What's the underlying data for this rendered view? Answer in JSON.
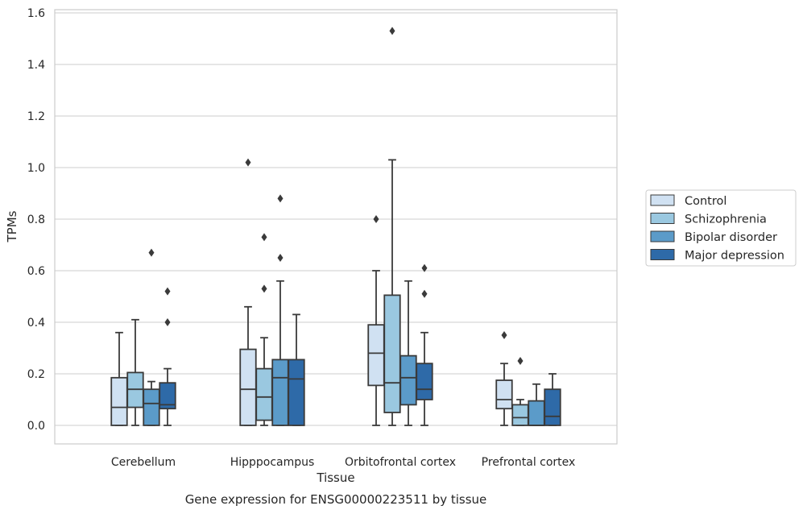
{
  "chart_data": {
    "type": "box",
    "title": "",
    "caption": "Gene expression for ENSG00000223511 by tissue",
    "xlabel": "Tissue",
    "ylabel": "TPMs",
    "ylim": [
      -0.07,
      1.61
    ],
    "yticks": [
      0.0,
      0.2,
      0.4,
      0.6,
      0.8,
      1.0,
      1.2,
      1.4,
      1.6
    ],
    "ytick_labels": [
      "0.0",
      "0.2",
      "0.4",
      "0.6",
      "0.8",
      "1.0",
      "1.2",
      "1.4",
      "1.6"
    ],
    "grid": true,
    "legend_position": "right",
    "categories": [
      "Cerebellum",
      "Hipppocampus",
      "Orbitofrontal cortex",
      "Prefrontal cortex"
    ],
    "series": [
      {
        "name": "Control",
        "color": "#d0e1f2",
        "boxes": [
          {
            "whisker_low": 0.0,
            "q1": 0.0,
            "median": 0.07,
            "q3": 0.185,
            "whisker_high": 0.36,
            "outliers": []
          },
          {
            "whisker_low": 0.0,
            "q1": 0.0,
            "median": 0.14,
            "q3": 0.295,
            "whisker_high": 0.46,
            "outliers": [
              1.02
            ]
          },
          {
            "whisker_low": 0.0,
            "q1": 0.155,
            "median": 0.28,
            "q3": 0.39,
            "whisker_high": 0.6,
            "outliers": [
              0.8
            ]
          },
          {
            "whisker_low": 0.0,
            "q1": 0.065,
            "median": 0.1,
            "q3": 0.175,
            "whisker_high": 0.24,
            "outliers": [
              0.35
            ]
          }
        ]
      },
      {
        "name": "Schizophrenia",
        "color": "#9ac8e0",
        "boxes": [
          {
            "whisker_low": 0.0,
            "q1": 0.07,
            "median": 0.14,
            "q3": 0.205,
            "whisker_high": 0.41,
            "outliers": []
          },
          {
            "whisker_low": 0.0,
            "q1": 0.02,
            "median": 0.11,
            "q3": 0.22,
            "whisker_high": 0.34,
            "outliers": [
              0.53,
              0.73
            ]
          },
          {
            "whisker_low": 0.0,
            "q1": 0.05,
            "median": 0.165,
            "q3": 0.505,
            "whisker_high": 1.03,
            "outliers": [
              1.53
            ]
          },
          {
            "whisker_low": 0.0,
            "q1": 0.0,
            "median": 0.03,
            "q3": 0.08,
            "whisker_high": 0.1,
            "outliers": [
              0.25
            ]
          }
        ]
      },
      {
        "name": "Bipolar disorder",
        "color": "#5b9bc9",
        "boxes": [
          {
            "whisker_low": 0.0,
            "q1": 0.0,
            "median": 0.085,
            "q3": 0.14,
            "whisker_high": 0.17,
            "outliers": [
              0.67
            ]
          },
          {
            "whisker_low": 0.0,
            "q1": 0.0,
            "median": 0.185,
            "q3": 0.255,
            "whisker_high": 0.56,
            "outliers": [
              0.65,
              0.88
            ]
          },
          {
            "whisker_low": 0.0,
            "q1": 0.08,
            "median": 0.185,
            "q3": 0.27,
            "whisker_high": 0.56,
            "outliers": []
          },
          {
            "whisker_low": 0.0,
            "q1": 0.0,
            "median": 0.0,
            "q3": 0.095,
            "whisker_high": 0.16,
            "outliers": []
          }
        ]
      },
      {
        "name": "Major depression",
        "color": "#2e6aa8",
        "boxes": [
          {
            "whisker_low": 0.0,
            "q1": 0.065,
            "median": 0.08,
            "q3": 0.165,
            "whisker_high": 0.22,
            "outliers": [
              0.4,
              0.52
            ]
          },
          {
            "whisker_low": 0.0,
            "q1": 0.0,
            "median": 0.18,
            "q3": 0.255,
            "whisker_high": 0.43,
            "outliers": []
          },
          {
            "whisker_low": 0.0,
            "q1": 0.1,
            "median": 0.14,
            "q3": 0.24,
            "whisker_high": 0.36,
            "outliers": [
              0.51,
              0.61
            ]
          },
          {
            "whisker_low": 0.0,
            "q1": 0.0,
            "median": 0.035,
            "q3": 0.14,
            "whisker_high": 0.2,
            "outliers": []
          }
        ]
      }
    ]
  }
}
